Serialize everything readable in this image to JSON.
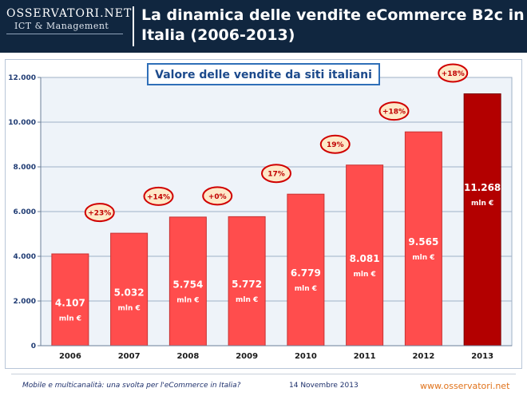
{
  "header": {
    "logo_main": "OSSERVATORI.NET",
    "logo_sub": "ICT & Management",
    "title_line1": "La dinamica delle vendite eCommerce B2c in",
    "title_line2": "Italia (2006-2013)"
  },
  "chart_data": {
    "type": "bar",
    "title": "Valore delle vendite da siti italiani",
    "categories": [
      "2006",
      "2007",
      "2008",
      "2009",
      "2010",
      "2011",
      "2012",
      "2013"
    ],
    "values": [
      4107,
      5032,
      5754,
      5772,
      6779,
      8081,
      9565,
      11268
    ],
    "value_labels": [
      "4.107",
      "5.032",
      "5.754",
      "5.772",
      "6.779",
      "8.081",
      "9.565",
      "11.268"
    ],
    "unit_label": "mln €",
    "growth_labels": [
      "+23%",
      "+14%",
      "+0%",
      "17%",
      "19%",
      "+18%",
      "+18%"
    ],
    "ylim": [
      0,
      12000
    ],
    "yticks": [
      0,
      2000,
      4000,
      6000,
      8000,
      10000,
      12000
    ],
    "ytick_labels": [
      "0",
      "2.000",
      "4.000",
      "6.000",
      "8.000",
      "10.000",
      "12.000"
    ],
    "grid": true,
    "colors": {
      "bar": "#ff4d4d",
      "bar_highlight": "#b30000",
      "growth_ellipse_fill": "#fde9c8",
      "growth_ellipse_stroke": "#d00000",
      "growth_text": "#c00000",
      "axis_text": "#1f3b73"
    }
  },
  "footer": {
    "left": "Mobile e multicanalità: una svolta per l'eCommerce in Italia?",
    "date": "14 Novembre 2013",
    "url": "www.osservatori.net"
  }
}
